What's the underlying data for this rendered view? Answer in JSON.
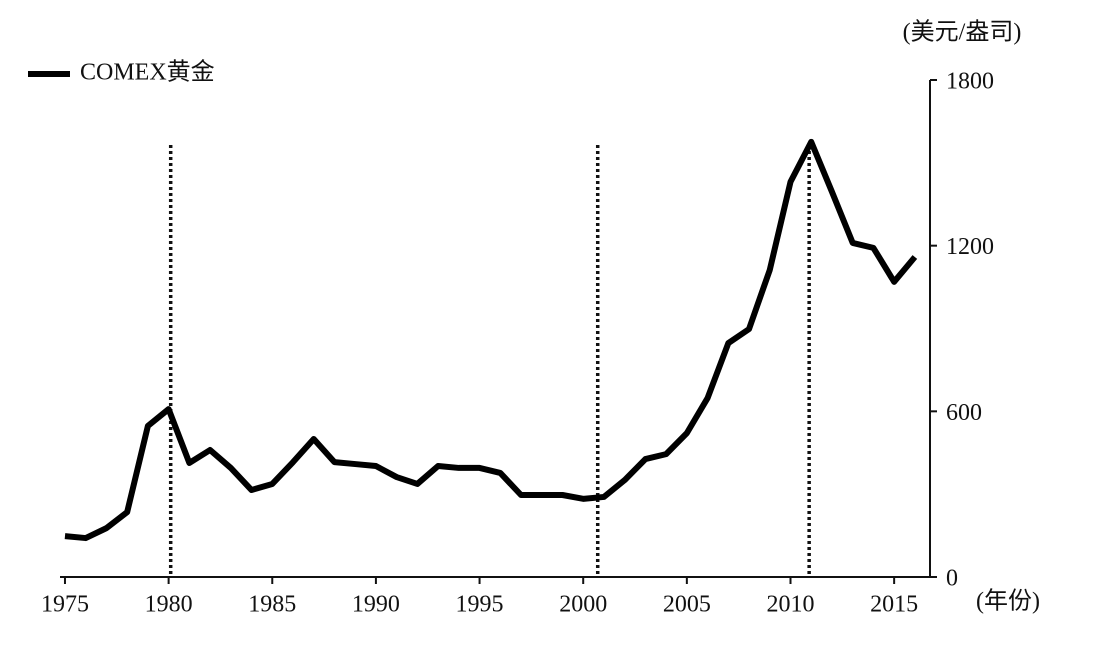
{
  "chart_data": {
    "type": "line",
    "y_label": "(美元/盎司)",
    "x_label": "(年份)",
    "x": [
      1975,
      1976,
      1977,
      1978,
      1979,
      1980,
      1981,
      1982,
      1983,
      1984,
      1985,
      1986,
      1987,
      1988,
      1989,
      1990,
      1991,
      1992,
      1993,
      1994,
      1995,
      1996,
      1997,
      1998,
      1999,
      2000,
      2001,
      2002,
      2003,
      2004,
      2005,
      2006,
      2007,
      2008,
      2009,
      2010,
      2011,
      2012,
      2013,
      2014,
      2015,
      2016
    ],
    "series": [
      {
        "name": "COMEX黄金",
        "color": "#000000",
        "values": [
          148,
          141,
          177,
          235,
          547,
          608,
          413,
          460,
          395,
          315,
          337,
          416,
          500,
          416,
          409,
          402,
          362,
          337,
          402,
          395,
          395,
          377,
          297,
          297,
          297,
          283,
          290,
          351,
          427,
          445,
          521,
          648,
          847,
          898,
          1112,
          1431,
          1576,
          1395,
          1210,
          1192,
          1069,
          1159
        ]
      }
    ],
    "vlines": [
      1980.1,
      2000.7,
      2010.9
    ],
    "xlim": [
      1974.76,
      2016.73
    ],
    "xticks": [
      1975,
      1980,
      1985,
      1990,
      1995,
      2000,
      2005,
      2010,
      2015
    ],
    "ylim": [
      0,
      1800
    ],
    "yticks": [
      0,
      600,
      1200,
      1800
    ],
    "legend": "top-left"
  }
}
